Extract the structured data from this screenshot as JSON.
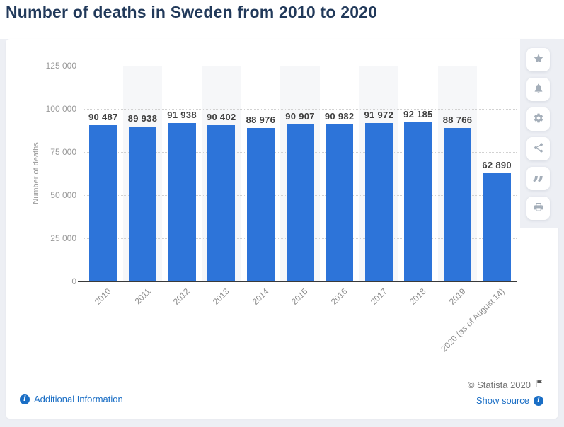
{
  "page": {
    "title": "Number of deaths in Sweden from 2010 to 2020"
  },
  "chart_data": {
    "type": "bar",
    "title": "Number of deaths in Sweden from 2010 to 2020",
    "categories": [
      "2010",
      "2011",
      "2012",
      "2013",
      "2014",
      "2015",
      "2016",
      "2017",
      "2018",
      "2019",
      "2020 (as of August 14)"
    ],
    "values": [
      90487,
      89938,
      91938,
      90402,
      88976,
      90907,
      90982,
      91972,
      92185,
      88766,
      62890
    ],
    "value_labels": [
      "90 487",
      "89 938",
      "91 938",
      "90 402",
      "88 976",
      "90 907",
      "90 982",
      "91 972",
      "92 185",
      "88 766",
      "62 890"
    ],
    "xlabel": "",
    "ylabel": "Number of deaths",
    "ylim": [
      0,
      125000
    ],
    "yticks": [
      0,
      25000,
      50000,
      75000,
      100000,
      125000
    ],
    "ytick_labels": [
      "0",
      "25 000",
      "50 000",
      "75 000",
      "100 000",
      "125 000"
    ],
    "grid": "horizontal-dotted",
    "legend": "none",
    "alternating_plot_bands": true
  },
  "toolbar": {
    "buttons": [
      {
        "name": "favorite",
        "icon": "star-icon"
      },
      {
        "name": "notifications",
        "icon": "bell-icon"
      },
      {
        "name": "settings",
        "icon": "gear-icon"
      },
      {
        "name": "share",
        "icon": "share-icon"
      },
      {
        "name": "cite",
        "icon": "quote-icon"
      },
      {
        "name": "print",
        "icon": "print-icon"
      }
    ]
  },
  "footer": {
    "additional_information": "Additional Information",
    "copyright": "© Statista 2020",
    "show_source": "Show source"
  },
  "colors": {
    "bar": "#2d74d9",
    "plot_band": "#f6f7f9",
    "link": "#1a6ec5",
    "title": "#21395a"
  }
}
